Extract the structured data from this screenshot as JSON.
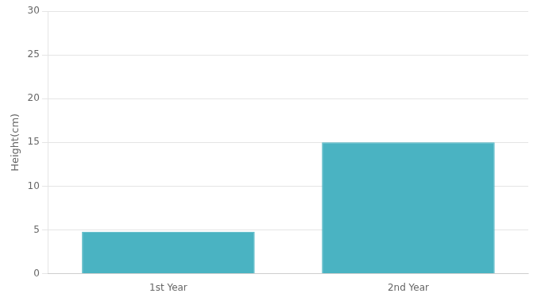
{
  "chart_data": {
    "type": "bar",
    "categories": [
      "1st Year",
      "2nd Year"
    ],
    "values": [
      4.8,
      15.0
    ],
    "color": "#4ab3c2",
    "ylabel": "Height(cm)",
    "ylim": [
      0,
      30
    ],
    "yticks": [
      0,
      5,
      10,
      15,
      20,
      25,
      30
    ],
    "grid": true
  }
}
